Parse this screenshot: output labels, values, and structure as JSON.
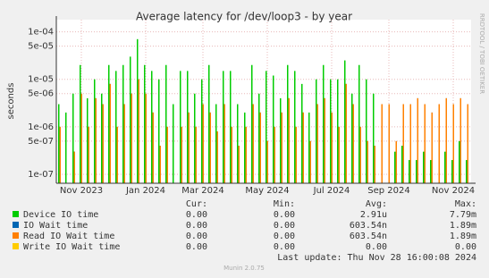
{
  "chart_data": {
    "type": "spike",
    "title": "Average latency for /dev/loop3 - by year",
    "y_label": "seconds",
    "side_label": "RRDTOOL / TOBI OETIKER",
    "log_scale": true,
    "grid": true,
    "categories": [
      null,
      null,
      null,
      "Nov 2023",
      null,
      null,
      null,
      null,
      null,
      null,
      null,
      null,
      "Jan 2024",
      null,
      null,
      null,
      null,
      null,
      null,
      null,
      "Mar 2024",
      null,
      null,
      null,
      null,
      null,
      null,
      null,
      null,
      "May 2024",
      null,
      null,
      null,
      null,
      null,
      null,
      null,
      null,
      "Jul 2024",
      null,
      null,
      null,
      null,
      null,
      null,
      null,
      "Sep 2024",
      null,
      null,
      null,
      null,
      null,
      null,
      null,
      null,
      "Nov 2024",
      null,
      null
    ],
    "ylim": [
      6.5e-08,
      0.00018
    ],
    "yticks": [
      {
        "value": 0.0001,
        "label": "1e-04"
      },
      {
        "value": 5e-05,
        "label": "5e-05"
      },
      {
        "value": 1e-05,
        "label": "1e-05"
      },
      {
        "value": 5e-06,
        "label": "5e-06"
      },
      {
        "value": 1e-06,
        "label": "1e-06"
      },
      {
        "value": 5e-07,
        "label": "5e-07"
      },
      {
        "value": 1e-07,
        "label": "1e-07"
      }
    ],
    "series": [
      {
        "name": "Device IO time",
        "color": "#00cc00",
        "values": [
          3e-06,
          2e-06,
          5e-06,
          2e-05,
          4e-06,
          1e-05,
          5e-06,
          2e-05,
          1.5e-05,
          2e-05,
          3e-05,
          7e-05,
          2e-05,
          1.5e-05,
          1e-05,
          2e-05,
          3e-06,
          1.5e-05,
          1.5e-05,
          5e-06,
          1e-05,
          2e-05,
          3e-06,
          1.5e-05,
          1.5e-05,
          3e-06,
          2e-06,
          2e-05,
          5e-06,
          1.5e-05,
          1.2e-05,
          4e-06,
          2e-05,
          1.5e-05,
          8e-06,
          2e-06,
          1e-05,
          2e-05,
          1e-05,
          1e-05,
          2.5e-05,
          5e-06,
          2e-05,
          1e-05,
          5e-06,
          null,
          null,
          3e-07,
          4e-07,
          2e-07,
          2e-07,
          3e-07,
          2e-07,
          null,
          3e-07,
          2e-07,
          5e-07,
          2e-07
        ]
      },
      {
        "name": "IO Wait time",
        "color": "#0066b3",
        "values": [
          1e-06,
          null,
          3e-07,
          5e-06,
          1e-06,
          4e-06,
          3e-06,
          8e-06,
          1e-06,
          3e-06,
          5e-06,
          1e-05,
          5e-06,
          2e-06,
          4e-07,
          1e-06,
          null,
          1e-06,
          2e-06,
          1e-06,
          3e-06,
          2e-06,
          8e-07,
          3e-06,
          1e-06,
          4e-07,
          1e-06,
          3e-06,
          2e-06,
          5e-07,
          1e-06,
          2e-06,
          4e-06,
          1e-06,
          2e-06,
          5e-07,
          3e-06,
          4e-06,
          2e-06,
          1e-06,
          8e-06,
          3e-06,
          1e-06,
          5e-07,
          4e-07,
          3e-06,
          3e-06,
          5e-07,
          3e-06,
          3e-06,
          4e-06,
          3e-06,
          2e-06,
          3e-06,
          4e-06,
          3e-06,
          4e-06,
          3e-06
        ]
      },
      {
        "name": "Read IO Wait time",
        "color": "#ff8000",
        "values": [
          1e-06,
          null,
          3e-07,
          5e-06,
          1e-06,
          4e-06,
          3e-06,
          8e-06,
          1e-06,
          3e-06,
          5e-06,
          1e-05,
          5e-06,
          2e-06,
          4e-07,
          1e-06,
          null,
          1e-06,
          2e-06,
          1e-06,
          3e-06,
          2e-06,
          8e-07,
          3e-06,
          1e-06,
          4e-07,
          1e-06,
          3e-06,
          2e-06,
          5e-07,
          1e-06,
          2e-06,
          4e-06,
          1e-06,
          2e-06,
          5e-07,
          3e-06,
          4e-06,
          2e-06,
          1e-06,
          8e-06,
          3e-06,
          1e-06,
          5e-07,
          4e-07,
          3e-06,
          3e-06,
          5e-07,
          3e-06,
          3e-06,
          4e-06,
          3e-06,
          2e-06,
          3e-06,
          4e-06,
          3e-06,
          4e-06,
          3e-06
        ]
      },
      {
        "name": "Write IO Wait time",
        "color": "#ffcc00",
        "values": [
          null,
          null,
          null,
          null,
          null,
          null,
          null,
          null,
          null,
          null,
          null,
          null,
          null,
          null,
          null,
          null,
          null,
          null,
          null,
          null,
          null,
          null,
          null,
          null,
          null,
          null,
          null,
          null,
          null,
          null,
          null,
          null,
          null,
          null,
          null,
          null,
          null,
          null,
          null,
          null,
          null,
          null,
          null,
          null,
          null,
          null,
          null,
          null,
          null,
          null,
          null,
          null,
          null,
          null,
          null,
          null,
          null,
          null
        ]
      }
    ],
    "summary": {
      "headers": [
        "Cur:",
        "Min:",
        "Avg:",
        "Max:"
      ],
      "rows": [
        [
          "0.00",
          "0.00",
          "2.91u",
          "7.79m"
        ],
        [
          "0.00",
          "0.00",
          "603.54n",
          "1.89m"
        ],
        [
          "0.00",
          "0.00",
          "603.54n",
          "1.89m"
        ],
        [
          "0.00",
          "0.00",
          "0.00",
          "0.00"
        ]
      ]
    },
    "last_update": "Last update: Thu Nov 28 16:00:08 2024",
    "footer": "Munin 2.0.75"
  }
}
